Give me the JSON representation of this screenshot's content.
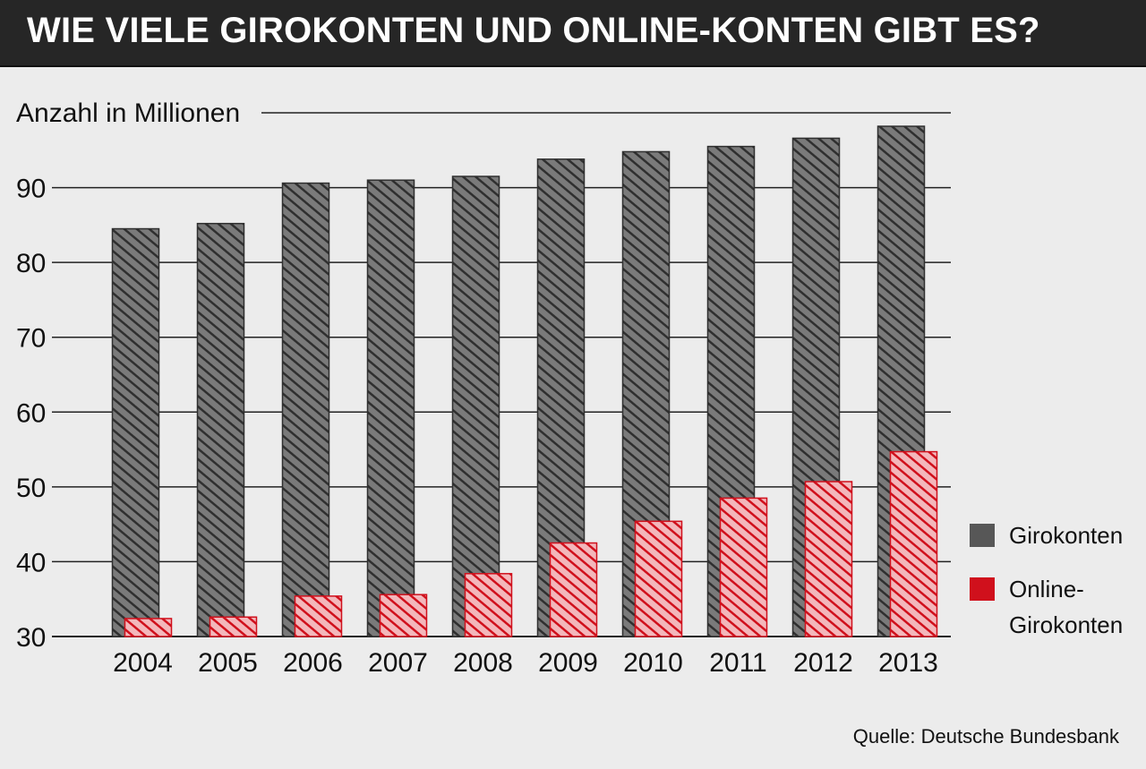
{
  "title": "WIE VIELE GIROKONTEN UND ONLINE-KONTEN GIBT ES?",
  "source": "Quelle: Deutsche Bundesbank",
  "chart_data": {
    "type": "bar",
    "ylabel": "Anzahl in Millionen",
    "ylim": [
      30,
      100
    ],
    "yticks": [
      30,
      40,
      50,
      60,
      70,
      80,
      90
    ],
    "grid": true,
    "legend_position": "right",
    "categories": [
      "2004",
      "2005",
      "2006",
      "2007",
      "2008",
      "2009",
      "2010",
      "2011",
      "2012",
      "2013"
    ],
    "series": [
      {
        "name": "Girokonten",
        "color": "#575757",
        "values": [
          84.5,
          85.2,
          90.6,
          91.0,
          91.5,
          93.8,
          94.8,
          95.5,
          96.6,
          98.2
        ]
      },
      {
        "name": "Online-Girokonten",
        "color": "#d0101c",
        "values": [
          32.4,
          32.6,
          35.4,
          35.6,
          38.4,
          42.5,
          45.4,
          48.5,
          50.7,
          54.7
        ]
      }
    ]
  }
}
